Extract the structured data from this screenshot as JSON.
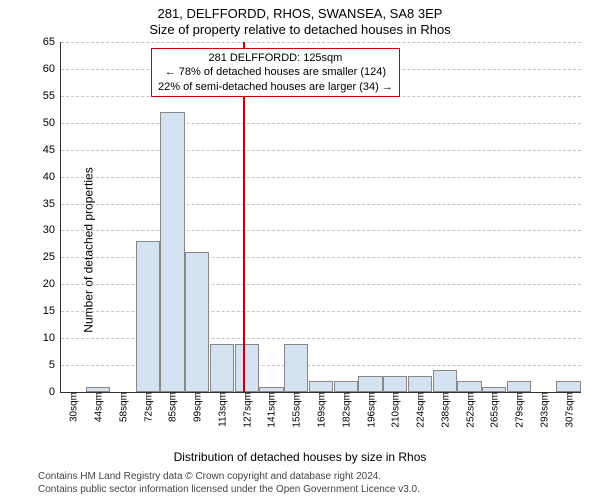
{
  "title_main": "281, DELFFORDD, RHOS, SWANSEA, SA8 3EP",
  "title_sub": "Size of property relative to detached houses in Rhos",
  "y_label": "Number of detached properties",
  "x_label": "Distribution of detached houses by size in Rhos",
  "footer_line1": "Contains HM Land Registry data © Crown copyright and database right 2024.",
  "footer_line2": "Contains public sector information licensed under the Open Government Licence v3.0.",
  "chart": {
    "type": "bar",
    "ylim": [
      0,
      65
    ],
    "ytick_step": 5,
    "xticks": [
      "30sqm",
      "44sqm",
      "58sqm",
      "72sqm",
      "85sqm",
      "99sqm",
      "113sqm",
      "127sqm",
      "141sqm",
      "155sqm",
      "169sqm",
      "182sqm",
      "196sqm",
      "210sqm",
      "224sqm",
      "238sqm",
      "252sqm",
      "265sqm",
      "279sqm",
      "293sqm",
      "307sqm"
    ],
    "values": [
      0,
      1,
      0,
      28,
      52,
      26,
      9,
      9,
      1,
      9,
      2,
      2,
      3,
      3,
      3,
      4,
      2,
      1,
      2,
      0,
      2
    ],
    "bar_color": "#d5e2f2",
    "bar_border": "#888888",
    "grid_color": "#888888",
    "background": "#ffffff",
    "marker_x_index": 6.85,
    "marker_color": "#cc0000",
    "annotation": {
      "line1": "281 DELFFORDD: 125sqm",
      "line2": "← 78% of detached houses are smaller (124)",
      "line3": "22% of semi-detached houses are larger (34) →",
      "border_color": "#cc0000"
    }
  }
}
